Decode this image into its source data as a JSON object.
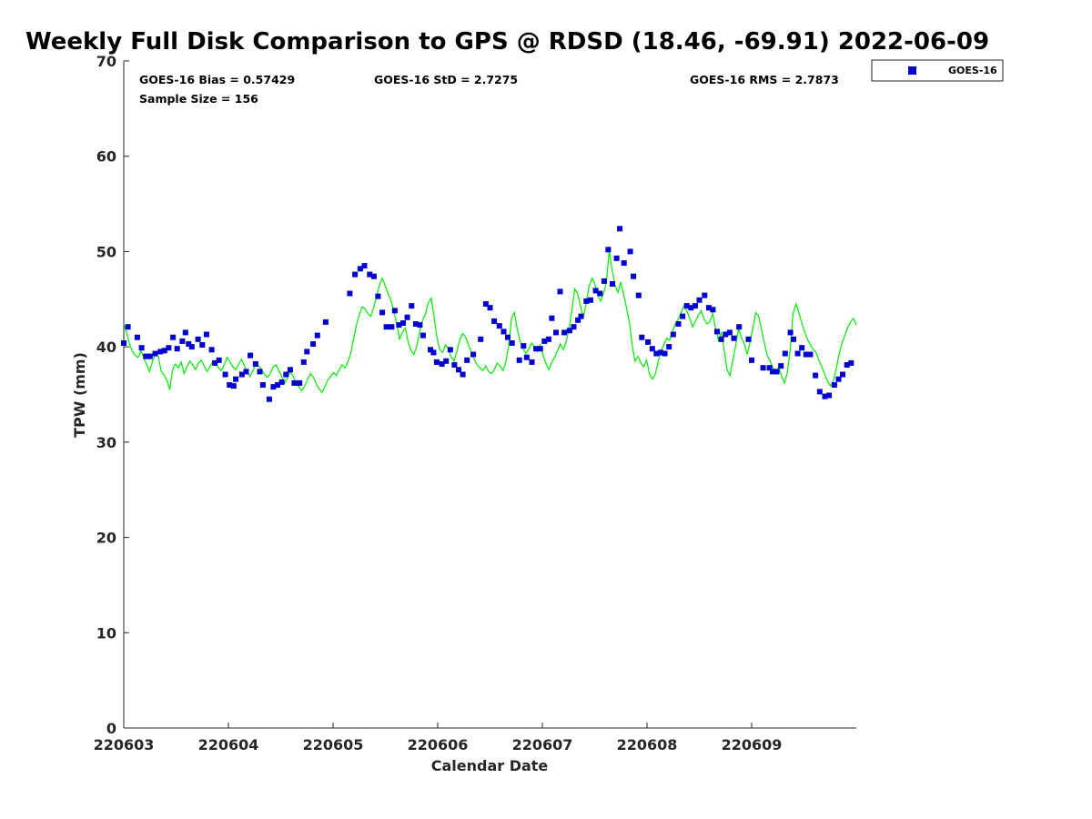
{
  "chart_data": {
    "type": "scatter",
    "title": "Weekly Full Disk Comparison to GPS @ RDSD (18.46, -69.91) 2022-06-09",
    "xlabel": "Calendar Date",
    "ylabel": "TPW (mm)",
    "xlim": [
      0,
      7
    ],
    "ylim": [
      0,
      70
    ],
    "yticks": [
      0,
      10,
      20,
      30,
      40,
      50,
      60,
      70
    ],
    "xticks": [
      {
        "value": 0,
        "label": "220603"
      },
      {
        "value": 1,
        "label": "220604"
      },
      {
        "value": 2,
        "label": "220605"
      },
      {
        "value": 3,
        "label": "220606"
      },
      {
        "value": 4,
        "label": "220607"
      },
      {
        "value": 5,
        "label": "220608"
      },
      {
        "value": 6,
        "label": "220609"
      }
    ],
    "annotations": {
      "bias": "GOES-16 Bias = 0.57429",
      "std": "GOES-16 StD = 2.7275",
      "rms": "GOES-16 RMS = 2.7873",
      "sample_size": "Sample Size = 156"
    },
    "legend": {
      "label": "GOES-16",
      "position": "outside-top-right"
    },
    "series": [
      {
        "name": "GOES-16",
        "marker": "square",
        "color": "#0000d0",
        "points": [
          [
            0.0,
            40.4
          ],
          [
            0.04,
            42.1
          ],
          [
            0.13,
            41.0
          ],
          [
            0.17,
            39.9
          ],
          [
            0.21,
            39.0
          ],
          [
            0.25,
            39.0
          ],
          [
            0.3,
            39.3
          ],
          [
            0.35,
            39.5
          ],
          [
            0.39,
            39.6
          ],
          [
            0.43,
            39.9
          ],
          [
            0.47,
            41.0
          ],
          [
            0.51,
            39.8
          ],
          [
            0.56,
            40.6
          ],
          [
            0.59,
            41.5
          ],
          [
            0.62,
            40.3
          ],
          [
            0.65,
            40.0
          ],
          [
            0.71,
            40.8
          ],
          [
            0.75,
            40.2
          ],
          [
            0.79,
            41.3
          ],
          [
            0.84,
            39.7
          ],
          [
            0.87,
            38.3
          ],
          [
            0.91,
            38.6
          ],
          [
            0.97,
            37.1
          ],
          [
            1.01,
            36.0
          ],
          [
            1.05,
            35.9
          ],
          [
            1.07,
            36.6
          ],
          [
            1.13,
            37.1
          ],
          [
            1.17,
            37.4
          ],
          [
            1.21,
            39.1
          ],
          [
            1.26,
            38.2
          ],
          [
            1.3,
            37.4
          ],
          [
            1.33,
            36.0
          ],
          [
            1.39,
            34.5
          ],
          [
            1.43,
            35.8
          ],
          [
            1.47,
            36.0
          ],
          [
            1.51,
            36.3
          ],
          [
            1.55,
            37.1
          ],
          [
            1.59,
            37.6
          ],
          [
            1.63,
            36.2
          ],
          [
            1.68,
            36.2
          ],
          [
            1.72,
            38.4
          ],
          [
            1.75,
            39.5
          ],
          [
            1.81,
            40.3
          ],
          [
            1.85,
            41.2
          ],
          [
            1.93,
            42.6
          ],
          [
            2.16,
            45.6
          ],
          [
            2.21,
            47.6
          ],
          [
            2.26,
            48.2
          ],
          [
            2.3,
            48.5
          ],
          [
            2.35,
            47.6
          ],
          [
            2.39,
            47.4
          ],
          [
            2.43,
            45.3
          ],
          [
            2.47,
            43.6
          ],
          [
            2.51,
            42.1
          ],
          [
            2.56,
            42.1
          ],
          [
            2.59,
            43.8
          ],
          [
            2.63,
            42.3
          ],
          [
            2.67,
            42.5
          ],
          [
            2.71,
            43.1
          ],
          [
            2.75,
            44.3
          ],
          [
            2.79,
            42.4
          ],
          [
            2.83,
            42.3
          ],
          [
            2.86,
            41.2
          ],
          [
            2.93,
            39.7
          ],
          [
            2.96,
            39.4
          ],
          [
            2.99,
            38.4
          ],
          [
            3.04,
            38.2
          ],
          [
            3.08,
            38.5
          ],
          [
            3.12,
            39.7
          ],
          [
            3.16,
            38.1
          ],
          [
            3.2,
            37.6
          ],
          [
            3.24,
            37.1
          ],
          [
            3.28,
            38.6
          ],
          [
            3.34,
            39.2
          ],
          [
            3.41,
            40.8
          ],
          [
            3.46,
            44.5
          ],
          [
            3.5,
            44.1
          ],
          [
            3.54,
            42.7
          ],
          [
            3.59,
            42.2
          ],
          [
            3.63,
            41.6
          ],
          [
            3.67,
            41.0
          ],
          [
            3.71,
            40.4
          ],
          [
            3.78,
            38.6
          ],
          [
            3.82,
            40.1
          ],
          [
            3.85,
            38.9
          ],
          [
            3.9,
            38.4
          ],
          [
            3.94,
            39.8
          ],
          [
            3.98,
            39.8
          ],
          [
            4.02,
            40.6
          ],
          [
            4.06,
            40.8
          ],
          [
            4.09,
            43.0
          ],
          [
            4.13,
            41.5
          ],
          [
            4.17,
            45.8
          ],
          [
            4.21,
            41.5
          ],
          [
            4.26,
            41.7
          ],
          [
            4.3,
            42.1
          ],
          [
            4.34,
            42.8
          ],
          [
            4.37,
            43.2
          ],
          [
            4.42,
            44.8
          ],
          [
            4.46,
            44.9
          ],
          [
            4.51,
            45.9
          ],
          [
            4.55,
            45.6
          ],
          [
            4.59,
            46.9
          ],
          [
            4.63,
            50.2
          ],
          [
            4.67,
            46.6
          ],
          [
            4.71,
            49.3
          ],
          [
            4.74,
            52.4
          ],
          [
            4.78,
            48.8
          ],
          [
            4.84,
            50.0
          ],
          [
            4.87,
            47.4
          ],
          [
            4.92,
            45.4
          ],
          [
            4.95,
            41.0
          ],
          [
            5.01,
            40.5
          ],
          [
            5.05,
            39.8
          ],
          [
            5.09,
            39.3
          ],
          [
            5.13,
            39.4
          ],
          [
            5.17,
            39.3
          ],
          [
            5.21,
            40.0
          ],
          [
            5.25,
            41.3
          ],
          [
            5.3,
            42.4
          ],
          [
            5.34,
            43.2
          ],
          [
            5.38,
            44.3
          ],
          [
            5.42,
            44.1
          ],
          [
            5.46,
            44.3
          ],
          [
            5.5,
            44.9
          ],
          [
            5.55,
            45.4
          ],
          [
            5.59,
            44.1
          ],
          [
            5.63,
            43.9
          ],
          [
            5.67,
            41.6
          ],
          [
            5.71,
            40.8
          ],
          [
            5.75,
            41.3
          ],
          [
            5.79,
            41.5
          ],
          [
            5.83,
            40.9
          ],
          [
            5.88,
            42.1
          ],
          [
            5.97,
            40.8
          ],
          [
            6.0,
            38.6
          ],
          [
            6.11,
            37.8
          ],
          [
            6.17,
            37.8
          ],
          [
            6.2,
            37.4
          ],
          [
            6.24,
            37.4
          ],
          [
            6.28,
            38.0
          ],
          [
            6.32,
            39.3
          ],
          [
            6.37,
            41.5
          ],
          [
            6.4,
            40.8
          ],
          [
            6.44,
            39.3
          ],
          [
            6.48,
            39.9
          ],
          [
            6.52,
            39.2
          ],
          [
            6.56,
            39.2
          ],
          [
            6.61,
            37.0
          ],
          [
            6.65,
            35.3
          ],
          [
            6.7,
            34.8
          ],
          [
            6.74,
            34.9
          ],
          [
            6.79,
            36.0
          ],
          [
            6.83,
            36.6
          ],
          [
            6.87,
            37.1
          ],
          [
            6.91,
            38.1
          ],
          [
            6.95,
            38.3
          ]
        ]
      },
      {
        "name": "GPS",
        "line": true,
        "color": "#00ee00",
        "x_start": 0,
        "x_end": 7,
        "values": [
          42.4,
          41.5,
          40.3,
          39.5,
          39.1,
          38.9,
          39.6,
          38.8,
          38.1,
          37.4,
          38.5,
          39.2,
          39.0,
          37.5,
          37.0,
          36.5,
          35.5,
          37.6,
          38.2,
          37.8,
          38.4,
          37.2,
          37.9,
          38.5,
          38.1,
          37.6,
          38.3,
          38.6,
          38.0,
          37.4,
          37.9,
          38.5,
          38.3,
          37.8,
          37.5,
          38.1,
          38.9,
          38.4,
          37.9,
          37.6,
          38.2,
          38.7,
          38.0,
          37.3,
          36.9,
          37.5,
          38.2,
          38.0,
          37.6,
          37.1,
          36.8,
          37.2,
          37.9,
          38.1,
          37.5,
          36.9,
          36.2,
          36.8,
          37.4,
          36.9,
          36.1,
          35.8,
          35.4,
          35.9,
          36.6,
          37.2,
          36.8,
          36.1,
          35.6,
          35.2,
          35.8,
          36.5,
          36.9,
          37.3,
          37.0,
          37.6,
          38.1,
          37.8,
          38.4,
          39.3,
          40.8,
          42.3,
          43.4,
          44.2,
          44.0,
          43.5,
          43.2,
          44.1,
          45.3,
          46.5,
          47.2,
          46.4,
          45.6,
          44.9,
          43.8,
          42.4,
          40.8,
          41.5,
          42.0,
          40.5,
          39.6,
          39.2,
          40.1,
          41.6,
          42.8,
          43.4,
          44.6,
          45.1,
          43.2,
          41.0,
          39.7,
          39.4,
          40.2,
          39.8,
          38.9,
          38.5,
          39.6,
          40.8,
          41.4,
          41.0,
          40.2,
          39.4,
          38.7,
          38.1,
          37.8,
          37.5,
          38.0,
          37.4,
          37.2,
          37.6,
          38.3,
          38.0,
          37.5,
          38.4,
          40.2,
          43.0,
          43.6,
          41.8,
          40.6,
          39.8,
          39.3,
          39.8,
          40.4,
          40.0,
          39.5,
          40.2,
          39.1,
          38.2,
          37.6,
          38.4,
          38.9,
          39.6,
          40.3,
          39.7,
          40.6,
          41.8,
          43.9,
          46.1,
          45.6,
          44.3,
          43.1,
          44.7,
          46.4,
          47.2,
          46.6,
          45.4,
          44.8,
          45.6,
          46.8,
          50.1,
          48.0,
          46.5,
          45.7,
          46.8,
          45.5,
          44.1,
          42.6,
          40.1,
          38.5,
          39.0,
          38.3,
          37.9,
          38.6,
          37.2,
          36.6,
          37.1,
          38.4,
          39.6,
          40.2,
          40.9,
          40.7,
          41.6,
          42.4,
          42.9,
          43.6,
          44.3,
          43.8,
          43.0,
          42.1,
          42.7,
          43.3,
          43.8,
          42.9,
          42.4,
          42.6,
          43.5,
          41.9,
          40.7,
          41.5,
          39.7,
          37.6,
          37.0,
          38.6,
          40.1,
          41.9,
          41.0,
          40.3,
          39.2,
          40.5,
          42.0,
          43.6,
          43.2,
          41.8,
          40.4,
          39.1,
          38.5,
          37.8,
          37.2,
          37.9,
          36.9,
          36.2,
          37.3,
          39.8,
          43.5,
          44.5,
          43.6,
          42.5,
          41.6,
          40.8,
          40.2,
          39.7,
          39.4,
          38.6,
          37.9,
          37.1,
          36.4,
          35.9,
          36.4,
          37.7,
          39.2,
          40.4,
          41.2,
          42.0,
          42.6,
          43.0,
          42.3
        ]
      }
    ]
  }
}
